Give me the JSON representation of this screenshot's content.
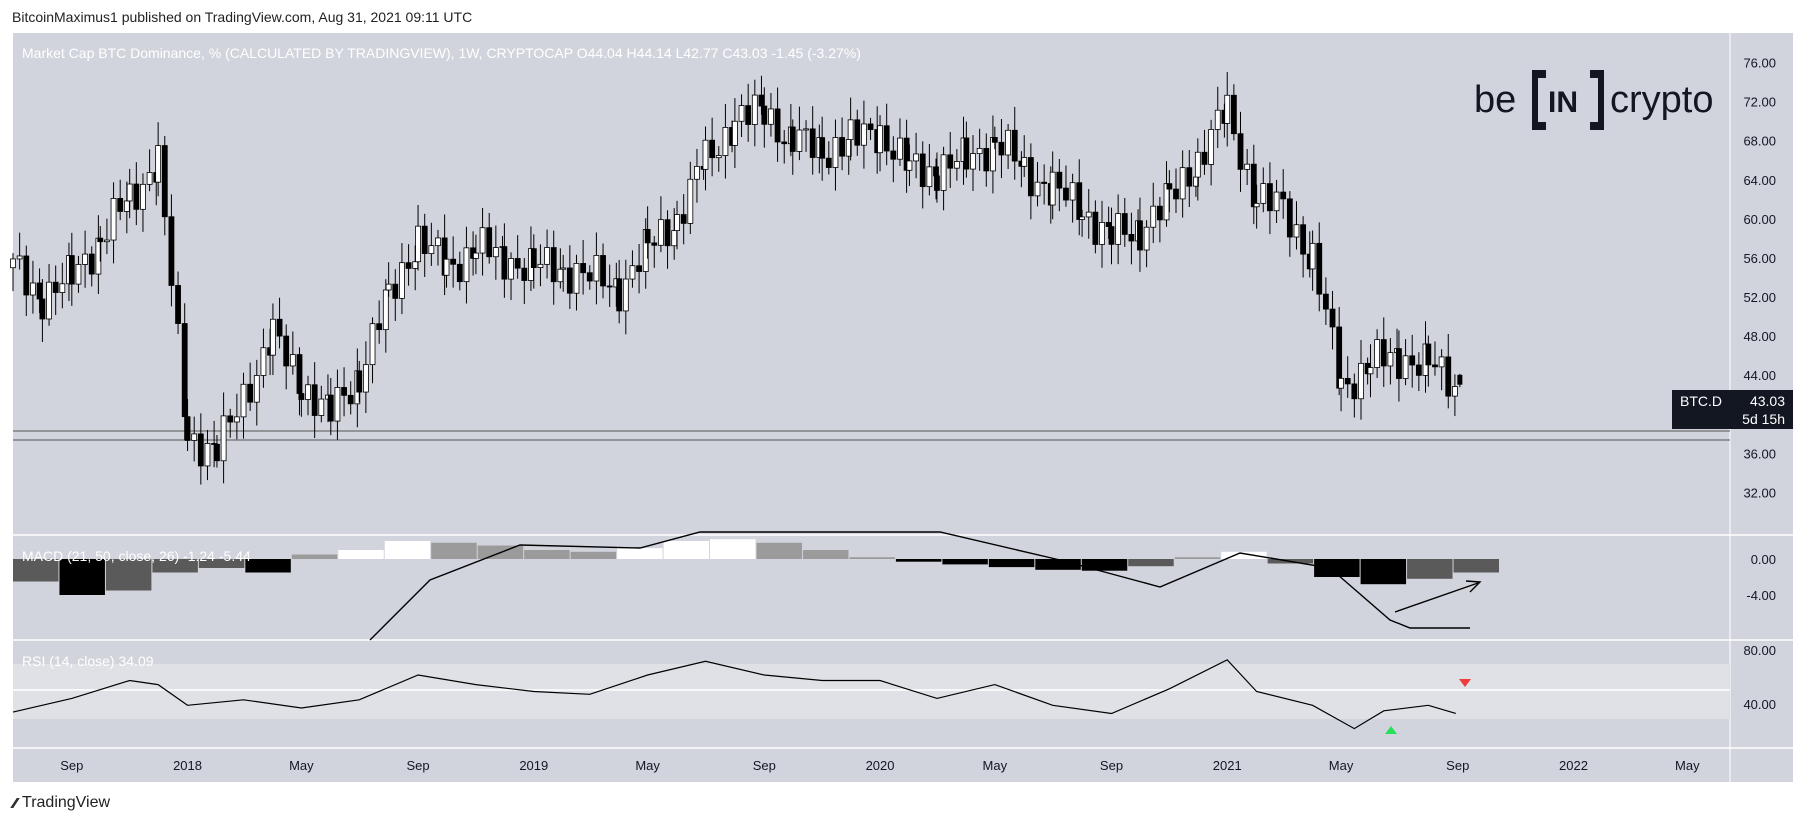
{
  "header": {
    "publisher_line": "BitcoinMaximus1 published on TradingView.com, Aug 31, 2021 09:11 UTC"
  },
  "main_panel": {
    "legend": "Market Cap BTC Dominance, % (CALCULATED BY TRADINGVIEW), 1W, CRYPTOCAP",
    "ohlc": {
      "o_label": "O",
      "o": "44.04",
      "h_label": "H",
      "h": "44.14",
      "l_label": "L",
      "l": "42.77",
      "c_label": "C",
      "c": "43.03",
      "change": "-1.45",
      "change_pct": "(-3.27%)"
    },
    "price_tag": {
      "symbol": "BTC.D",
      "value": "43.03",
      "countdown": "5d 15h"
    }
  },
  "macd_panel": {
    "legend": "MACD (21, 50, close, 26)",
    "v1": "-1.24",
    "v2": "-5.44"
  },
  "rsi_panel": {
    "legend": "RSI (14, close)",
    "value": "34.09"
  },
  "brand_logo": {
    "text_left": "be",
    "text_mid": "IN",
    "text_right": "crypto"
  },
  "footer": {
    "logo_text": "TradingView"
  },
  "colors": {
    "bg": "#d1d4dc",
    "candle_up": "#ffffff",
    "candle_down": "#000000",
    "support": "#555555",
    "rsi_band": "#dfe1e6",
    "rsi_bottom_marker": "#26e05a",
    "rsi_top_marker": "#ef3b3b",
    "macd_hist_strong": "#ffffff",
    "macd_hist_weak": "#9b9b9b"
  },
  "chart_data": [
    {
      "type": "candlestick",
      "title": "Market Cap BTC Dominance, % (CALCULATED BY TRADINGVIEW), 1W, CRYPTOCAP",
      "x_ticks": [
        "Sep",
        "2018",
        "May",
        "Sep",
        "2019",
        "May",
        "Sep",
        "2020",
        "May",
        "Sep",
        "2021",
        "May",
        "Sep",
        "2022",
        "May"
      ],
      "y_ticks": [
        "76.00",
        "72.00",
        "68.00",
        "64.00",
        "60.00",
        "56.00",
        "52.00",
        "48.00",
        "44.00",
        "40.00",
        "36.00",
        "32.00"
      ],
      "ylim": [
        30,
        78
      ],
      "support_zone": [
        39.2,
        40.0
      ],
      "close_path": [
        [
          "2017-07-01",
          55
        ],
        [
          "2017-08-01",
          52
        ],
        [
          "2017-09-01",
          54
        ],
        [
          "2017-10-01",
          58
        ],
        [
          "2017-11-01",
          62
        ],
        [
          "2017-12-01",
          66
        ],
        [
          "2018-01-01",
          38
        ],
        [
          "2018-02-01",
          36
        ],
        [
          "2018-03-01",
          42
        ],
        [
          "2018-04-01",
          48
        ],
        [
          "2018-05-01",
          43
        ],
        [
          "2018-06-01",
          40
        ],
        [
          "2018-07-01",
          44
        ],
        [
          "2018-08-01",
          52
        ],
        [
          "2018-09-01",
          58
        ],
        [
          "2018-10-01",
          55
        ],
        [
          "2018-11-01",
          57
        ],
        [
          "2018-12-01",
          56
        ],
        [
          "2019-01-01",
          55
        ],
        [
          "2019-02-01",
          55
        ],
        [
          "2019-03-01",
          54
        ],
        [
          "2019-04-01",
          53
        ],
        [
          "2019-05-01",
          57
        ],
        [
          "2019-06-01",
          60
        ],
        [
          "2019-07-01",
          66
        ],
        [
          "2019-08-01",
          70
        ],
        [
          "2019-09-01",
          71
        ],
        [
          "2019-10-01",
          68
        ],
        [
          "2019-11-01",
          67
        ],
        [
          "2019-12-01",
          68
        ],
        [
          "2020-01-01",
          69
        ],
        [
          "2020-02-01",
          65
        ],
        [
          "2020-03-01",
          65
        ],
        [
          "2020-04-01",
          66
        ],
        [
          "2020-05-01",
          68
        ],
        [
          "2020-06-01",
          65
        ],
        [
          "2020-07-01",
          63
        ],
        [
          "2020-08-01",
          61
        ],
        [
          "2020-09-01",
          58
        ],
        [
          "2020-10-01",
          59
        ],
        [
          "2020-11-01",
          62
        ],
        [
          "2020-12-01",
          66
        ],
        [
          "2021-01-01",
          71
        ],
        [
          "2021-02-01",
          62
        ],
        [
          "2021-03-01",
          61
        ],
        [
          "2021-04-01",
          56
        ],
        [
          "2021-05-01",
          43
        ],
        [
          "2021-06-01",
          45
        ],
        [
          "2021-07-01",
          46
        ],
        [
          "2021-08-01",
          45
        ],
        [
          "2021-08-30",
          43.03
        ]
      ],
      "last_candle": {
        "open": 44.04,
        "high": 44.14,
        "low": 42.77,
        "close": 43.03
      }
    },
    {
      "type": "bar",
      "title": "MACD (21, 50, close, 26)",
      "values_shown": [
        -1.24,
        -5.44
      ],
      "y_ticks": [
        "0.00",
        "-4.00"
      ],
      "histogram_trend": [
        -2.5,
        -4.0,
        -3.5,
        -1.5,
        -1.0,
        -1.5,
        0.5,
        1.0,
        2.0,
        1.8,
        1.5,
        1.0,
        0.8,
        1.2,
        2.0,
        2.2,
        1.8,
        1.0,
        0.2,
        -0.3,
        -0.6,
        -0.9,
        -1.2,
        -1.3,
        -0.8,
        0.2,
        0.8,
        -0.5,
        -2.0,
        -2.8,
        -2.2,
        -1.5
      ],
      "annotation": "rising arrow on histogram"
    },
    {
      "type": "line",
      "title": "RSI (14, close)",
      "value_shown": 34.09,
      "y_ticks": [
        "80.00",
        "40.00"
      ],
      "bands": [
        30,
        70
      ],
      "path": [
        [
          "2017-07-01",
          35
        ],
        [
          "2017-09-01",
          45
        ],
        [
          "2017-11-01",
          58
        ],
        [
          "2017-12-01",
          55
        ],
        [
          "2018-01-01",
          40
        ],
        [
          "2018-03-01",
          44
        ],
        [
          "2018-05-01",
          38
        ],
        [
          "2018-07-01",
          44
        ],
        [
          "2018-09-01",
          62
        ],
        [
          "2018-11-01",
          55
        ],
        [
          "2019-01-01",
          50
        ],
        [
          "2019-03-01",
          48
        ],
        [
          "2019-05-01",
          62
        ],
        [
          "2019-07-01",
          72
        ],
        [
          "2019-09-01",
          62
        ],
        [
          "2019-11-01",
          58
        ],
        [
          "2020-01-01",
          58
        ],
        [
          "2020-03-01",
          45
        ],
        [
          "2020-05-01",
          55
        ],
        [
          "2020-07-01",
          40
        ],
        [
          "2020-09-01",
          34
        ],
        [
          "2020-11-01",
          52
        ],
        [
          "2021-01-01",
          73
        ],
        [
          "2021-02-01",
          50
        ],
        [
          "2021-04-01",
          40
        ],
        [
          "2021-05-15",
          23
        ],
        [
          "2021-06-15",
          36
        ],
        [
          "2021-08-01",
          40
        ],
        [
          "2021-08-30",
          34.09
        ]
      ],
      "annotations": [
        "green up triangle at May 2021 low",
        "red down triangle above Aug 2021"
      ]
    }
  ]
}
